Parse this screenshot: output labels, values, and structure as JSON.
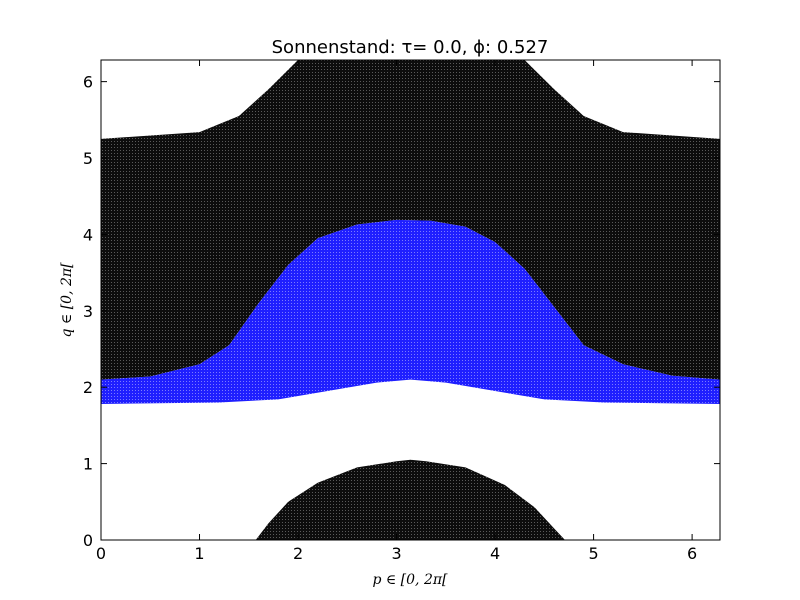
{
  "chart_data": {
    "type": "heatmap",
    "title": "Sonnenstand:  τ=  0.0, ϕ: 0.527",
    "xlabel": "p ∈ [0, 2π[",
    "ylabel": "q ∈ [0, 2π[",
    "xlim": [
      0,
      6.2832
    ],
    "ylim": [
      0,
      6.2832
    ],
    "xticks": [
      "0",
      "1",
      "2",
      "3",
      "4",
      "5",
      "6"
    ],
    "yticks": [
      "0",
      "1",
      "2",
      "3",
      "4",
      "5",
      "6"
    ],
    "grid": false,
    "colors": {
      "black_region": "#1a1a1a",
      "blue_region": "#2b2bff",
      "background": "#ffffff"
    },
    "regions": {
      "black_upper": {
        "color_key": "black_region",
        "top_hole_boundary_lower": {
          "x": [
            0,
            1.0,
            1.4,
            1.7,
            2.0,
            2.4,
            2.8,
            3.1416,
            3.5,
            3.9,
            4.3,
            4.6,
            4.9,
            5.3,
            6.2832
          ],
          "y": [
            5.25,
            5.34,
            5.55,
            5.9,
            6.2832,
            6.2832,
            6.2832,
            6.2832,
            6.2832,
            6.2832,
            6.2832,
            5.9,
            5.55,
            5.34,
            5.25
          ]
        },
        "bottom_y_equals_blue_top": true
      },
      "blue_band": {
        "color_key": "blue_region",
        "upper": {
          "x": [
            0,
            0.5,
            1.0,
            1.3,
            1.6,
            1.9,
            2.2,
            2.6,
            3.0,
            3.35,
            3.7,
            4.0,
            4.3,
            4.6,
            4.9,
            5.3,
            5.8,
            6.2832
          ],
          "y": [
            2.1,
            2.14,
            2.3,
            2.55,
            3.1,
            3.6,
            3.95,
            4.13,
            4.19,
            4.18,
            4.1,
            3.9,
            3.55,
            3.05,
            2.55,
            2.3,
            2.15,
            2.1
          ]
        },
        "lower": {
          "x": [
            0,
            1.2,
            1.8,
            2.3,
            2.8,
            3.1416,
            3.5,
            4.0,
            4.5,
            5.1,
            6.2832
          ],
          "y": [
            1.78,
            1.8,
            1.84,
            1.95,
            2.06,
            2.1,
            2.06,
            1.95,
            1.84,
            1.8,
            1.78
          ]
        }
      },
      "black_lower": {
        "color_key": "black_region",
        "cap_top": {
          "x": [
            1.57,
            1.7,
            1.9,
            2.2,
            2.6,
            3.0,
            3.1416,
            3.3,
            3.7,
            4.1,
            4.4,
            4.6,
            4.71
          ],
          "y": [
            0.0,
            0.22,
            0.5,
            0.75,
            0.95,
            1.03,
            1.05,
            1.03,
            0.95,
            0.72,
            0.43,
            0.15,
            0.0
          ]
        }
      }
    }
  }
}
